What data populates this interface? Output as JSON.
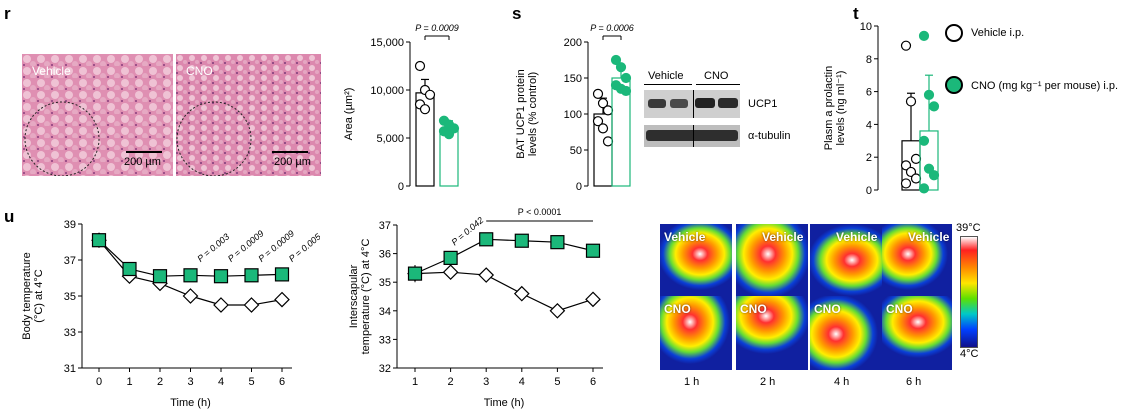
{
  "panels": {
    "r": "r",
    "s": "s",
    "t": "t",
    "u": "u"
  },
  "micrographs": {
    "vehicle_label": "Vehicle",
    "cno_label": "CNO",
    "scale_bar_label": "200 µm"
  },
  "colors": {
    "green": "#1bb87a",
    "dark_green": "#0a7a4f",
    "tissue_pink": "#d97aa6"
  },
  "chart_data": [
    {
      "id": "area",
      "type": "bar",
      "categories": [
        "Vehicle",
        "CNO"
      ],
      "values": [
        9700,
        5900
      ],
      "errors": [
        1400,
        900
      ],
      "points": [
        [
          12500,
          10000,
          9500,
          8500,
          8000
        ],
        [
          6800,
          6400,
          6000,
          5700,
          5400
        ]
      ],
      "ylabel": "Area (µm²)",
      "ylim": [
        0,
        15000
      ],
      "yticks": [
        "0",
        "5,000",
        "10,000",
        "15,000"
      ],
      "annotation": "P = 0.0009"
    },
    {
      "id": "ucp1",
      "type": "bar",
      "categories": [
        "Vehicle",
        "CNO"
      ],
      "values": [
        100,
        150
      ],
      "errors": [
        22,
        18
      ],
      "points": [
        [
          128,
          115,
          105,
          90,
          80,
          62
        ],
        [
          175,
          165,
          150,
          140,
          135,
          132
        ]
      ],
      "ylabel": "BAT UCP1 protein levels (% control)",
      "ylim": [
        0,
        200
      ],
      "yticks": [
        "0",
        "50",
        "100",
        "150",
        "200"
      ],
      "annotation": "P = 0.0006"
    },
    {
      "id": "prolactin",
      "type": "bar",
      "categories": [
        "Vehicle i.p.",
        "CNO (mg kg⁻¹ per mouse) i.p."
      ],
      "values": [
        3.0,
        3.6
      ],
      "errors": [
        2.9,
        3.4
      ],
      "points": [
        [
          8.8,
          5.4,
          1.9,
          1.5,
          1.1,
          0.7,
          0.4
        ],
        [
          9.4,
          5.8,
          5.1,
          3.0,
          1.3,
          0.9,
          0.1
        ]
      ],
      "ylabel": "Plasm a prolactin levels (ng ml⁻¹)",
      "ylim": [
        0,
        10
      ],
      "yticks": [
        "0",
        "2",
        "4",
        "6",
        "8",
        "10"
      ]
    },
    {
      "id": "body_temp",
      "type": "line",
      "x": [
        0,
        1,
        2,
        3,
        4,
        5,
        6
      ],
      "series": [
        {
          "name": "Vehicle",
          "values": [
            38.1,
            36.1,
            35.7,
            35.0,
            34.5,
            34.5,
            34.8
          ],
          "errors": [
            0.1,
            0.2,
            0.2,
            0.2,
            0.3,
            0.3,
            0.3
          ]
        },
        {
          "name": "CNO",
          "values": [
            38.1,
            36.5,
            36.1,
            36.15,
            36.1,
            36.15,
            36.2
          ],
          "errors": [
            0.1,
            0.15,
            0.15,
            0.15,
            0.15,
            0.15,
            0.15
          ]
        }
      ],
      "xlabel": "Time (h)",
      "ylabel": "Body temperature (°C) at 4°C",
      "ylim": [
        31,
        39
      ],
      "yticks": [
        "31",
        "33",
        "35",
        "37",
        "39"
      ],
      "annotations": [
        {
          "x": 3,
          "text": "P = 0.003"
        },
        {
          "x": 4,
          "text": "P = 0.0009"
        },
        {
          "x": 5,
          "text": "P = 0.0009"
        },
        {
          "x": 6,
          "text": "P = 0.005"
        }
      ]
    },
    {
      "id": "interscapular_temp",
      "type": "line",
      "x": [
        1,
        2,
        3,
        4,
        5,
        6
      ],
      "series": [
        {
          "name": "Vehicle",
          "values": [
            35.3,
            35.35,
            35.25,
            34.6,
            34.0,
            34.4
          ],
          "errors": [
            0.2,
            0.15,
            0.15,
            0.15,
            0.15,
            0.2
          ]
        },
        {
          "name": "CNO",
          "values": [
            35.3,
            35.85,
            36.5,
            36.45,
            36.4,
            36.1
          ],
          "errors": [
            0.3,
            0.15,
            0.15,
            0.15,
            0.15,
            0.15
          ]
        }
      ],
      "xlabel": "Time (h)",
      "ylabel": "Interscapular temperature (°C) at 4°C",
      "ylim": [
        32,
        37
      ],
      "yticks": [
        "32",
        "33",
        "34",
        "35",
        "36",
        "37"
      ],
      "annotations": [
        {
          "x": 2,
          "text": "P = 0.042"
        },
        {
          "x": 4.5,
          "text": "P < 0.0001"
        }
      ]
    }
  ],
  "blot": {
    "vehicle_label": "Vehicle",
    "cno_label": "CNO",
    "ucp1_label": "UCP1",
    "tubulin_label": "α-tubulin"
  },
  "legend": {
    "vehicle": "Vehicle i.p.",
    "cno": "CNO (mg kg⁻¹ per mouse) i.p."
  },
  "thermal": {
    "vehicle_label": "Vehicle",
    "cno_label": "CNO",
    "time_labels": [
      "1 h",
      "2 h",
      "4 h",
      "6 h"
    ],
    "scale_max": "39°C",
    "scale_min": "4°C"
  }
}
